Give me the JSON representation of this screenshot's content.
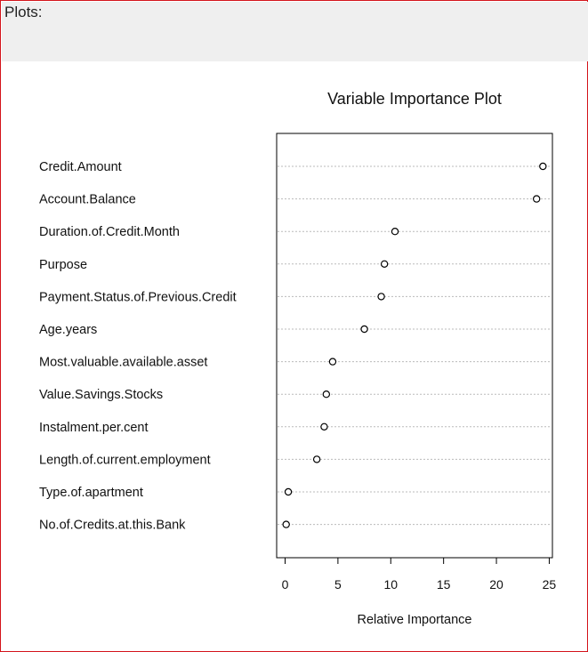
{
  "panel": {
    "header": "Plots:"
  },
  "colors": {
    "frame_border": "#d4141b",
    "header_background": "#efefef",
    "gridline": "#bbbbbb",
    "point": "#000000"
  },
  "chart_data": {
    "type": "scatter",
    "style": "dotchart",
    "title": "Variable Importance Plot",
    "xlabel": "Relative Importance",
    "ylabel": "",
    "xlim": [
      -0.8,
      25.3
    ],
    "x_ticks": [
      0,
      5,
      10,
      15,
      20,
      25
    ],
    "grid": "dotted horizontal lines per variable",
    "categories": [
      "Credit.Amount",
      "Account.Balance",
      "Duration.of.Credit.Month",
      "Purpose",
      "Payment.Status.of.Previous.Credit",
      "Age.years",
      "Most.valuable.available.asset",
      "Value.Savings.Stocks",
      "Instalment.per.cent",
      "Length.of.current.employment",
      "Type.of.apartment",
      "No.of.Credits.at.this.Bank"
    ],
    "values": [
      24.4,
      23.8,
      10.4,
      9.4,
      9.1,
      7.5,
      4.5,
      3.9,
      3.7,
      3.0,
      0.3,
      0.1
    ]
  }
}
